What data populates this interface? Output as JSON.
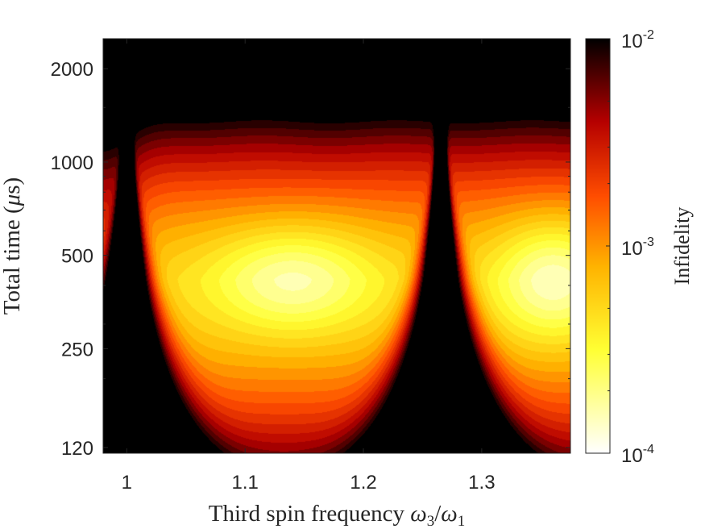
{
  "chart_data": {
    "type": "heatmap",
    "title": "",
    "xlabel": "Third spin frequency ω₃/ω₁",
    "xlabel_parts": {
      "main": "Third spin frequency ",
      "sym1": "ω",
      "sub1": "3",
      "slash": "/",
      "sym2": "ω",
      "sub2": "1"
    },
    "ylabel": "Total time (μs)",
    "ylabel_parts": {
      "main": "Total time (",
      "mu": "μ",
      "unit": "s)"
    },
    "xlim": [
      0.98,
      1.375
    ],
    "ylim": [
      115,
      2500
    ],
    "yscale": "log",
    "x_ticks": [
      1.0,
      1.1,
      1.2,
      1.3
    ],
    "x_tick_labels": [
      "1",
      "1.1",
      "1.2",
      "1.3"
    ],
    "y_ticks": [
      120,
      250,
      500,
      1000,
      2000
    ],
    "y_tick_labels": [
      "120",
      "250",
      "500",
      "1000",
      "2000"
    ],
    "colorbar": {
      "label": "Infidelity",
      "scale": "log",
      "range": [
        0.0001,
        0.01
      ],
      "ticks": [
        0.0001,
        0.001,
        0.01
      ],
      "tick_labels": [
        {
          "base": "10",
          "exp": "-4"
        },
        {
          "base": "10",
          "exp": "-3"
        },
        {
          "base": "10",
          "exp": "-2"
        }
      ],
      "colormap": "hot (reversed)"
    },
    "resonances_x": [
      1.0,
      1.265
    ],
    "z_description": "log10 infidelity approx; minima (~1e-4) near T≈420 μs at x≈1.14 and x≈1.34; maxima (≥1e-2) at resonances x=1.0 and x≈1.265",
    "grid": false
  }
}
